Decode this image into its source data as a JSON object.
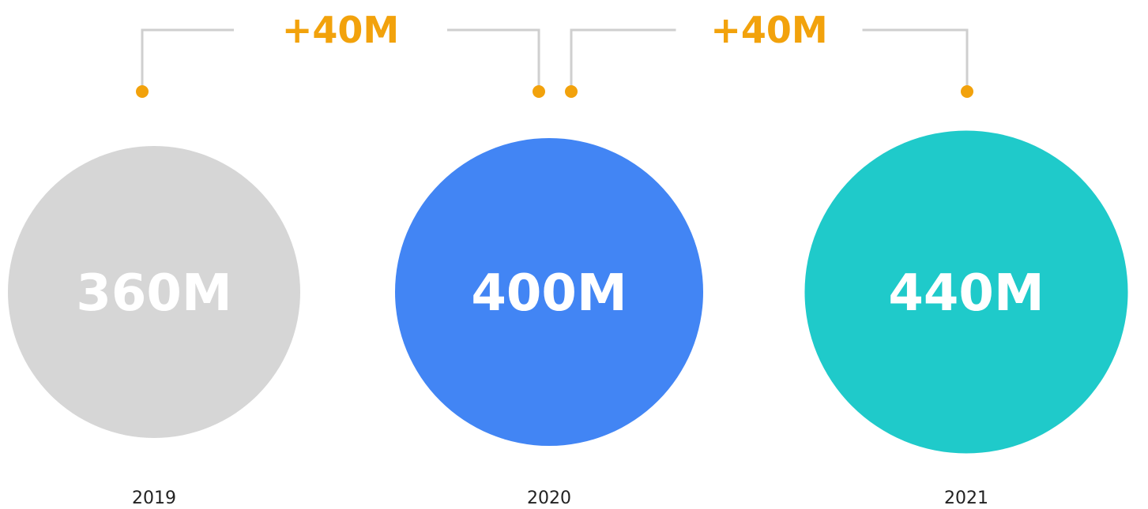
{
  "chart_data": {
    "type": "bubble",
    "unit": "M",
    "categories": [
      "2019",
      "2020",
      "2021"
    ],
    "values": [
      360,
      400,
      440
    ],
    "value_labels": [
      "360M",
      "400M",
      "440M"
    ],
    "colors": [
      "#d6d6d6",
      "#4285f4",
      "#1fcaca"
    ],
    "changes": [
      {
        "from": "2019",
        "to": "2020",
        "value": 40,
        "label": "+40M"
      },
      {
        "from": "2020",
        "to": "2021",
        "value": 40,
        "label": "+40M"
      }
    ],
    "accent_color": "#f2a20c",
    "title": "",
    "xlabel": "",
    "ylabel": ""
  }
}
